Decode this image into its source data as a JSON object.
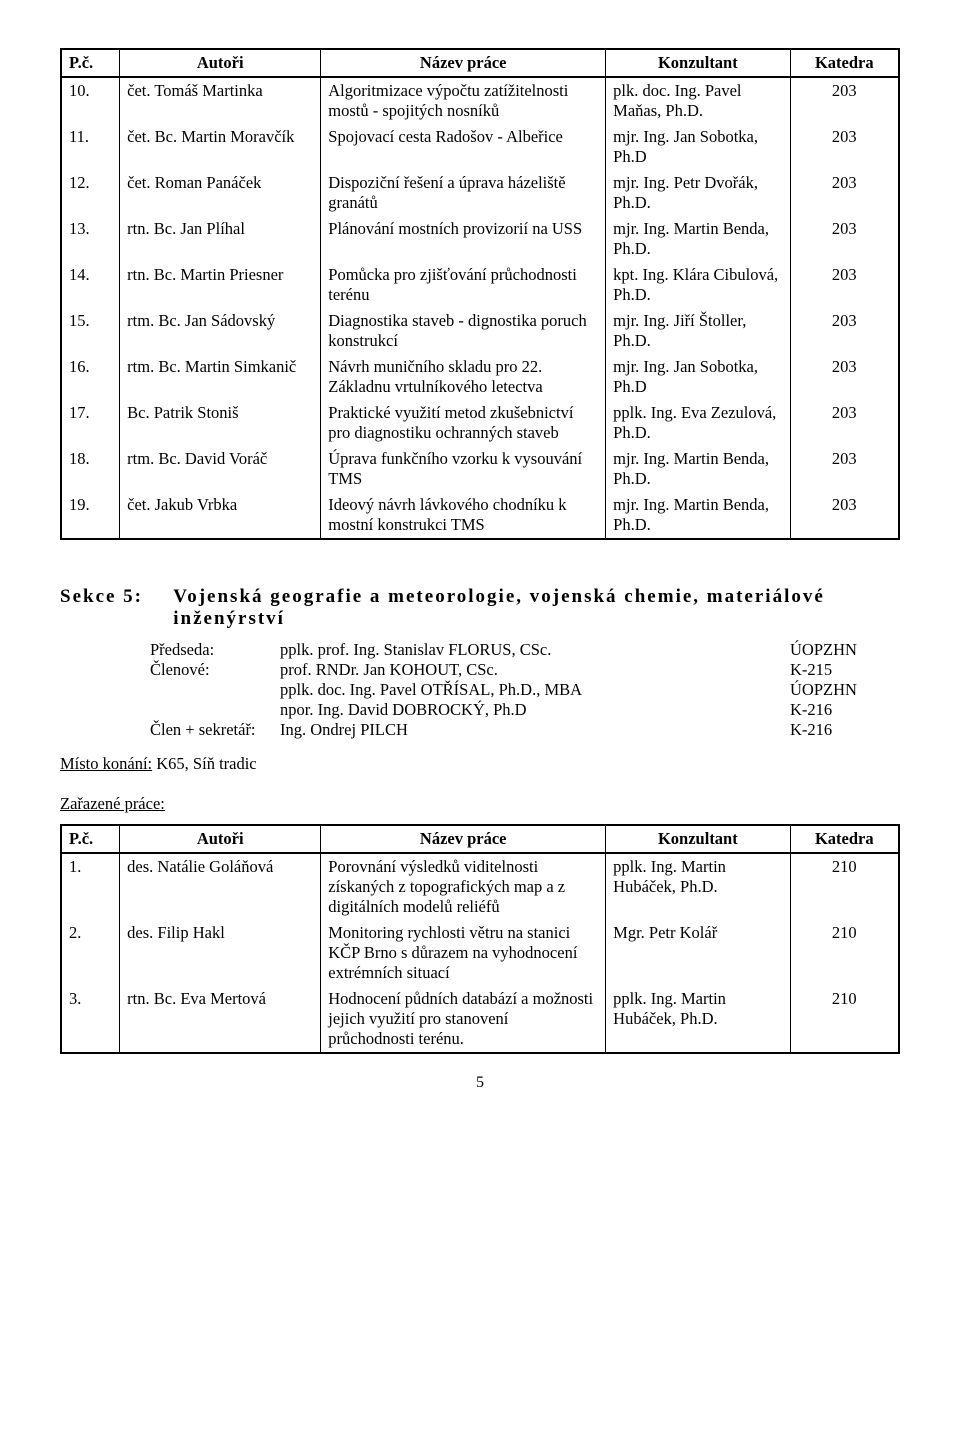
{
  "table1": {
    "headers": [
      "P.č.",
      "Autoři",
      "Název práce",
      "Konzultant",
      "Katedra"
    ],
    "rows": [
      {
        "num": "10.",
        "auth": "čet. Tomáš Martinka",
        "title": "Algoritmizace výpočtu zatížitelnosti mostů - spojitých nosníků",
        "cons": "plk. doc. Ing. Pavel Maňas, Ph.D.",
        "dept": "203"
      },
      {
        "num": "11.",
        "auth": "čet. Bc. Martin Moravčík",
        "title": "Spojovací cesta Radošov - Albeřice",
        "cons": "mjr. Ing. Jan Sobotka, Ph.D",
        "dept": "203"
      },
      {
        "num": "12.",
        "auth": "čet. Roman Panáček",
        "title": "Dispoziční řešení a úprava házeliště granátů",
        "cons": "mjr. Ing. Petr Dvořák, Ph.D.",
        "dept": "203"
      },
      {
        "num": "13.",
        "auth": "rtn. Bc. Jan Plíhal",
        "title": "Plánování mostních provizorií na USS",
        "cons": "mjr. Ing. Martin Benda, Ph.D.",
        "dept": "203"
      },
      {
        "num": "14.",
        "auth": "rtn. Bc. Martin Priesner",
        "title": "Pomůcka pro zjišťování průchodnosti terénu",
        "cons": "kpt. Ing. Klára Cibulová, Ph.D.",
        "dept": "203"
      },
      {
        "num": "15.",
        "auth": "rtm. Bc. Jan Sádovský",
        "title": "Diagnostika staveb - dignostika poruch konstrukcí",
        "cons": "mjr. Ing. Jiří Štoller, Ph.D.",
        "dept": "203"
      },
      {
        "num": "16.",
        "auth": "rtm. Bc. Martin Simkanič",
        "title": "Návrh muničního skladu pro 22. Základnu vrtulníkového letectva",
        "cons": "mjr. Ing. Jan Sobotka, Ph.D",
        "dept": "203"
      },
      {
        "num": "17.",
        "auth": "Bc. Patrik Stoniš",
        "title": "Praktické využití metod zkušebnictví pro diagnostiku ochranných staveb",
        "cons": "pplk. Ing. Eva Zezulová, Ph.D.",
        "dept": "203"
      },
      {
        "num": "18.",
        "auth": "rtm. Bc. David Voráč",
        "title": "Úprava funkčního vzorku k vysouvání TMS",
        "cons": "mjr. Ing. Martin Benda, Ph.D.",
        "dept": "203"
      },
      {
        "num": "19.",
        "auth": "čet. Jakub Vrbka",
        "title": "Ideový návrh lávkového chodníku k mostní konstrukci TMS",
        "cons": "mjr. Ing. Martin Benda, Ph.D.",
        "dept": "203"
      }
    ]
  },
  "section": {
    "label": "Sekce 5:",
    "title": "Vojenská geografie a meteorologie, vojenská chemie, materiálové inženýrství",
    "committee": [
      {
        "role": "Předseda:",
        "name": "pplk. prof. Ing. Stanislav FLORUS, CSc.",
        "code": "ÚOPZHN"
      },
      {
        "role": "Členové:",
        "name": "prof. RNDr. Jan KOHOUT, CSc.",
        "code": "K-215"
      },
      {
        "role": "",
        "name": "pplk. doc. Ing. Pavel OTŘÍSAL, Ph.D., MBA",
        "code": "ÚOPZHN"
      },
      {
        "role": "",
        "name": "npor. Ing. David DOBROCKÝ, Ph.D",
        "code": "K-216"
      },
      {
        "role": "Člen + sekretář:",
        "name": "Ing. Ondrej PILCH",
        "code": "K-216"
      }
    ],
    "location_label": "Místo konání:",
    "location_value": " K65, Síň tradic",
    "zarazene": "Zařazené práce:"
  },
  "table2": {
    "headers": [
      "P.č.",
      "Autoři",
      "Název práce",
      "Konzultant",
      "Katedra"
    ],
    "rows": [
      {
        "num": "1.",
        "auth": "des. Natálie Goláňová",
        "title": "Porovnání výsledků viditelnosti získaných z topografických map a z digitálních modelů reliéfů",
        "cons": "pplk. Ing. Martin Hubáček, Ph.D.",
        "dept": "210"
      },
      {
        "num": "2.",
        "auth": "des. Filip Hakl",
        "title": "Monitoring rychlosti větru na stanici KČP Brno s důrazem na vyhodnocení extrémních situací",
        "cons": "Mgr. Petr Kolář",
        "dept": "210"
      },
      {
        "num": "3.",
        "auth": "rtn. Bc. Eva Mertová",
        "title": "Hodnocení půdních databází a možnosti jejich využití pro stanovení průchodnosti terénu.",
        "cons": "pplk. Ing. Martin Hubáček, Ph.D.",
        "dept": "210"
      }
    ]
  },
  "page_number": "5"
}
